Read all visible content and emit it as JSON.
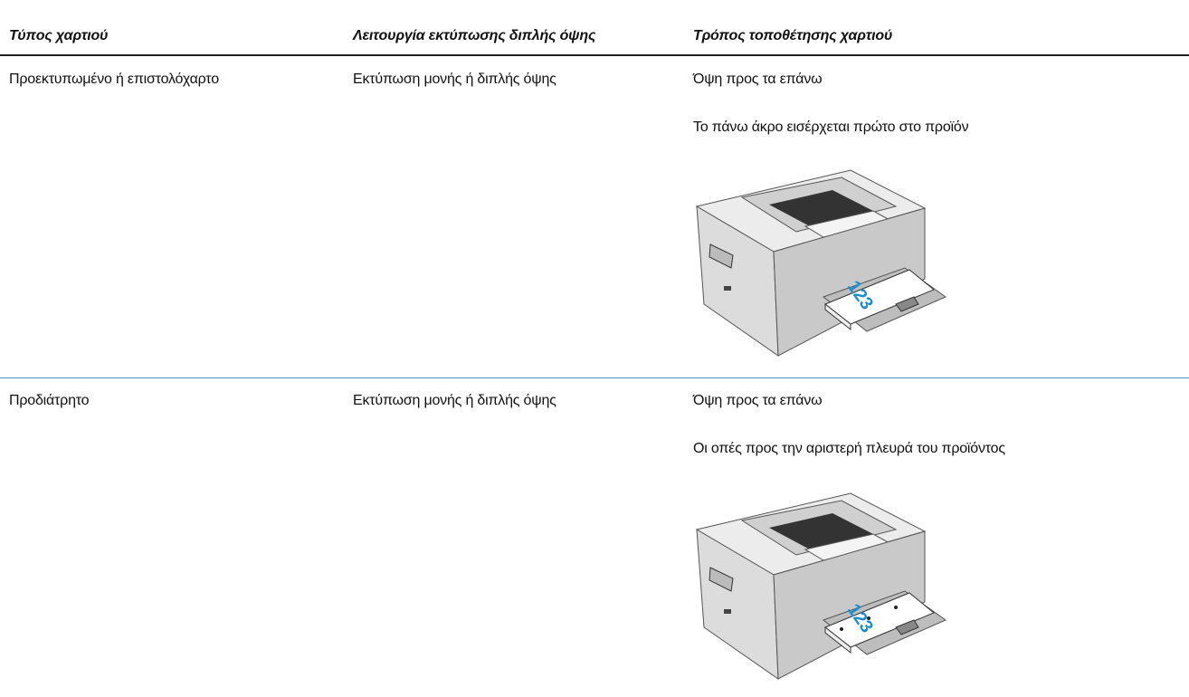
{
  "table": {
    "headers": [
      "Τύπος χαρτιού",
      "Λειτουργία εκτύπωσης διπλής όψης",
      "Τρόπος τοποθέτησης χαρτιού"
    ],
    "rows": [
      {
        "paper_type": "Προεκτυπωμένο ή επιστολόχαρτο",
        "duplex_mode": "Εκτύπωση μονής ή διπλής όψης",
        "orientation": [
          "Όψη προς τα επάνω",
          "Το πάνω άκρο εισέρχεται πρώτο στο προϊόν"
        ],
        "image_text": "123"
      },
      {
        "paper_type": "Προδιάτρητο",
        "duplex_mode": "Εκτύπωση μονής ή διπλής όψης",
        "orientation": [
          "Όψη προς τα επάνω",
          "Οι οπές προς την αριστερή πλευρά του προϊόντος"
        ],
        "image_text": "123"
      }
    ]
  }
}
